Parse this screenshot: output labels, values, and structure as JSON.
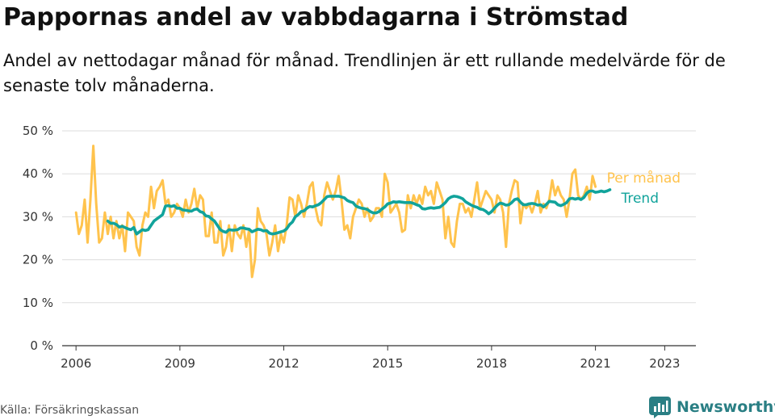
{
  "header": {
    "title": "Pappornas andel av vabbdagarna i Strömstad",
    "subtitle": "Andel av nettodagar månad för månad. Trendlinjen är ett rullande medelvärde för de senaste tolv månaderna."
  },
  "footer": {
    "source": "Källa: Försäkringskassan",
    "brand": "Newsworthy",
    "brand_color": "#2a7f84"
  },
  "chart_data": {
    "type": "line",
    "x_unit": "month",
    "x_start": "2006-01",
    "xlim": [
      2005.6,
      2023.9
    ],
    "ylim": [
      0,
      50
    ],
    "yticks": [
      0,
      10,
      20,
      30,
      40,
      50
    ],
    "ytick_labels": [
      "0 %",
      "10 %",
      "20 %",
      "30 %",
      "40 %",
      "50 %"
    ],
    "xticks": [
      2006,
      2009,
      2012,
      2015,
      2018,
      2021,
      2023
    ],
    "xtick_labels": [
      "2006",
      "2009",
      "2012",
      "2015",
      "2018",
      "2021",
      "2023"
    ],
    "grid": "horizontal",
    "legend_placement": "right-end-labels",
    "series": [
      {
        "name": "Per månad",
        "color": "#ffc34d",
        "values": [
          31,
          26,
          28,
          34,
          24,
          34,
          46.5,
          33,
          24,
          25,
          31,
          26,
          30,
          25,
          29,
          25,
          28,
          22,
          31,
          30,
          29,
          23,
          21,
          28,
          31,
          30,
          37,
          32,
          36,
          37,
          38.5,
          33,
          34,
          30,
          31,
          33,
          32,
          30,
          34,
          31,
          33,
          36.5,
          32,
          35,
          34,
          25.5,
          25.5,
          31,
          24,
          24,
          29,
          21,
          23,
          28,
          22,
          28,
          26,
          25,
          28,
          23,
          27,
          16,
          20,
          32,
          29,
          28,
          26,
          21,
          24,
          28,
          22,
          26,
          24,
          28,
          34.5,
          34,
          30,
          35,
          33,
          30,
          33,
          37,
          38,
          32,
          29,
          28,
          35,
          38,
          36,
          34,
          36,
          39.5,
          34,
          27,
          28,
          25,
          30,
          32,
          34,
          33,
          30,
          32,
          29,
          30,
          32,
          32,
          30,
          40,
          38,
          31,
          32,
          33,
          31,
          26.5,
          27,
          35,
          32,
          35,
          33,
          35,
          33,
          37,
          35,
          36,
          33,
          38,
          36,
          34,
          25,
          30,
          24,
          23,
          29,
          33,
          33,
          31,
          32,
          30,
          34,
          38,
          32,
          34,
          36,
          35,
          34,
          31,
          35,
          34,
          31,
          23,
          33,
          36,
          38.5,
          38,
          28.5,
          33,
          32,
          33,
          31,
          33,
          36,
          31,
          33,
          32,
          34,
          38.5,
          35,
          37,
          35,
          34,
          30,
          34,
          40,
          41,
          35,
          34,
          35,
          37,
          34,
          39.5,
          37
        ]
      },
      {
        "name": "Trend",
        "color": "#11a39b",
        "values": [
          null,
          null,
          null,
          null,
          null,
          null,
          null,
          null,
          null,
          null,
          null,
          29,
          28.5,
          28.5,
          28.2,
          27.6,
          27.8,
          27.5,
          27.2,
          27,
          27.5,
          26,
          26.5,
          27,
          26.8,
          27,
          28,
          29,
          29.5,
          30,
          30.5,
          32.5,
          32.6,
          32.4,
          32.6,
          32,
          32,
          31.6,
          31.5,
          31.4,
          31.3,
          31.7,
          31.8,
          31.2,
          31,
          30.2,
          30.1,
          29.5,
          29,
          28,
          27,
          26.6,
          26.4,
          27,
          26.9,
          26.9,
          27,
          27.4,
          27.4,
          27.2,
          27.1,
          26.5,
          26.8,
          27.1,
          27,
          26.7,
          26.8,
          26.2,
          26,
          26.1,
          26.3,
          26.5,
          26.7,
          27.2,
          28.2,
          28.8,
          30,
          30.5,
          31.2,
          31.4,
          32,
          32.4,
          32.3,
          32.6,
          32.8,
          33.3,
          34,
          34.7,
          34.8,
          34.8,
          34.8,
          34.8,
          34.6,
          34.4,
          33.8,
          33.5,
          33.3,
          32.5,
          32.2,
          32,
          31.9,
          31.7,
          31.2,
          30.9,
          30.9,
          31.2,
          31.8,
          32.3,
          33,
          33.2,
          33.5,
          33.4,
          33.5,
          33.4,
          33.3,
          33.3,
          33.3,
          33.1,
          32.8,
          32.6,
          31.9,
          31.8,
          32,
          32.1,
          32,
          32.1,
          32.2,
          32.7,
          33.3,
          34.2,
          34.6,
          34.8,
          34.7,
          34.5,
          34.2,
          33.5,
          33.1,
          32.7,
          32.4,
          32.2,
          31.8,
          31.7,
          31.3,
          30.7,
          31.2,
          32,
          32.7,
          33.2,
          33,
          32.7,
          32.8,
          33.3,
          34,
          34.2,
          33.4,
          32.8,
          32.8,
          33,
          33.1,
          33,
          32.7,
          32.8,
          32.3,
          32.9,
          33.6,
          33.5,
          33.4,
          32.8,
          32.6,
          32.9,
          33.3,
          34.2,
          34.3,
          34.1,
          34.3,
          34,
          34.5,
          35.5,
          36,
          36,
          35.7,
          35.8,
          36,
          35.8,
          36,
          36.3
        ]
      }
    ]
  }
}
